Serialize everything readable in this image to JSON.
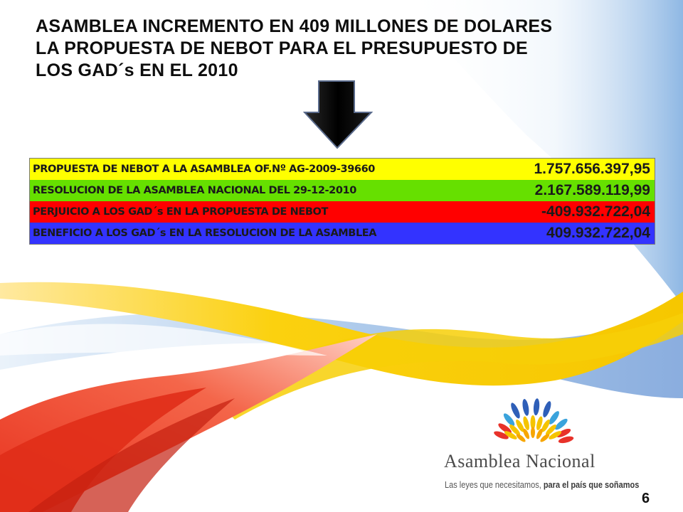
{
  "slide": {
    "title_lines": [
      "ASAMBLEA INCREMENTO EN 409 MILLONES DE DOLARES",
      "LA PROPUESTA DE NEBOT PARA EL PRESUPUESTO DE",
      "LOS GAD´s EN EL 2010"
    ],
    "table": [
      {
        "label": "PROPUESTA DE NEBOT A LA ASAMBLEA OF.Nº AG-2009-39660",
        "value": "1.757.656.397,95",
        "color": "#ffff00"
      },
      {
        "label": "RESOLUCION DE LA ASAMBLEA NACIONAL DEL 29-12-2010",
        "value": "2.167.589.119,99",
        "color": "#66e000"
      },
      {
        "label": "PERJUICIO A LOS GAD´s EN LA PROPUESTA DE NEBOT",
        "value": "-409.932.722,04",
        "color": "#ff0000"
      },
      {
        "label": "BENEFICIO A LOS GAD´s EN LA RESOLUCION DE LA ASAMBLEA",
        "value": "409.932.722,04",
        "color": "#3333ff"
      }
    ],
    "page_number": "6"
  },
  "logo": {
    "name_first": "Asamblea",
    "name_second": "Nacional",
    "tagline_regular": "Las leyes que necesitamos,",
    "tagline_bold": "para el país que soñamos"
  },
  "icons": {
    "arrow": "down-arrow-icon",
    "logo_emblem": "sun-rays-emblem-icon"
  }
}
